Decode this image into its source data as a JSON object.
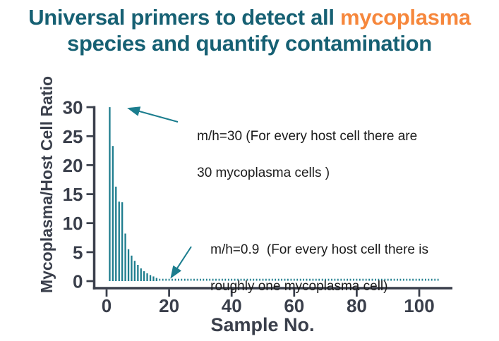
{
  "title": {
    "prefix": "Universal primers to detect all ",
    "highlight": "mycoplasma",
    "line2": "species and quantify contamination"
  },
  "colors": {
    "title_teal": "#166073",
    "highlight_orange": "#F6873C",
    "bar_teal": "#1E7D8E",
    "axis_gray": "#3A3F4B",
    "arrow_teal": "#1B7D8E",
    "annotation_text": "#1B1B1B",
    "background": "#FFFFFF"
  },
  "chart_data": {
    "type": "bar",
    "title": "",
    "xlabel": "Sample No.",
    "ylabel": "Mycoplasma/Host Cell Ratio",
    "x": [
      1,
      2,
      3,
      4,
      5,
      6,
      7,
      8,
      9,
      10,
      11,
      12,
      13,
      14,
      15,
      16
    ],
    "values": [
      30,
      23.3,
      16.3,
      13.7,
      13.6,
      8.2,
      5.5,
      4.4,
      3.5,
      2.8,
      2.2,
      1.7,
      1.35,
      1.05,
      0.8,
      0.55
    ],
    "dotted_tail": {
      "from_sample": 17,
      "to_sample": 106,
      "value": 0.4
    },
    "xticks": [
      0,
      20,
      40,
      60,
      80,
      100
    ],
    "yticks": [
      0,
      5,
      10,
      15,
      20,
      25,
      30
    ],
    "xlim": [
      0,
      110
    ],
    "ylim": [
      0,
      30
    ],
    "grid": false,
    "legend": null
  },
  "annotations": [
    {
      "line1": "m/h=30 (For every host cell there are",
      "line2": "30 mycoplasma cells )"
    },
    {
      "line1": "m/h=0.9  (For every host cell there is",
      "line2": "roughly one mycoplasma cell)"
    }
  ]
}
